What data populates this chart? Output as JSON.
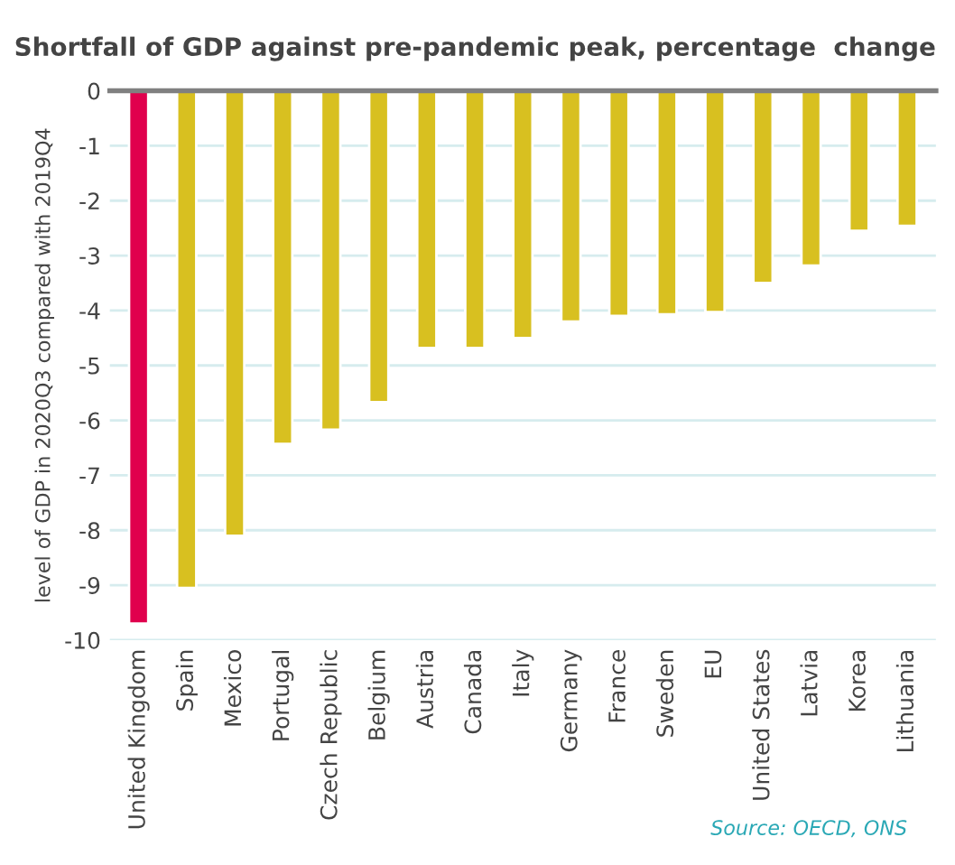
{
  "chart_data": {
    "type": "bar",
    "title": "Shortfall of GDP against pre-pandemic peak, percentage  change",
    "ylabel": "level of GDP in 2020Q3 compared with 2019Q4",
    "categories": [
      "United Kingdom",
      "Spain",
      "Mexico",
      "Portugal",
      "Czech Republic",
      "Belgium",
      "Austria",
      "Canada",
      "Italy",
      "Germany",
      "France",
      "Sweden",
      "EU",
      "United States",
      "Latvia",
      "Korea",
      "Lithuania"
    ],
    "values": [
      -9.7,
      -9.05,
      -8.1,
      -6.43,
      -6.17,
      -5.67,
      -4.68,
      -4.68,
      -4.5,
      -4.2,
      -4.1,
      -4.07,
      -4.03,
      -3.5,
      -3.18,
      -2.55,
      -2.46
    ],
    "colors": [
      "#e0004d",
      "#d8c020",
      "#d8c020",
      "#d8c020",
      "#d8c020",
      "#d8c020",
      "#d8c020",
      "#d8c020",
      "#d8c020",
      "#d8c020",
      "#d8c020",
      "#d8c020",
      "#d8c020",
      "#d8c020",
      "#d8c020",
      "#d8c020",
      "#d8c020"
    ],
    "ylim": [
      -10,
      0
    ],
    "yticks": [
      -10,
      -9,
      -8,
      -7,
      -6,
      -5,
      -4,
      -3,
      -2,
      -1,
      0
    ],
    "grid": "y",
    "annotations": [
      "Source: OECD, ONS"
    ]
  }
}
